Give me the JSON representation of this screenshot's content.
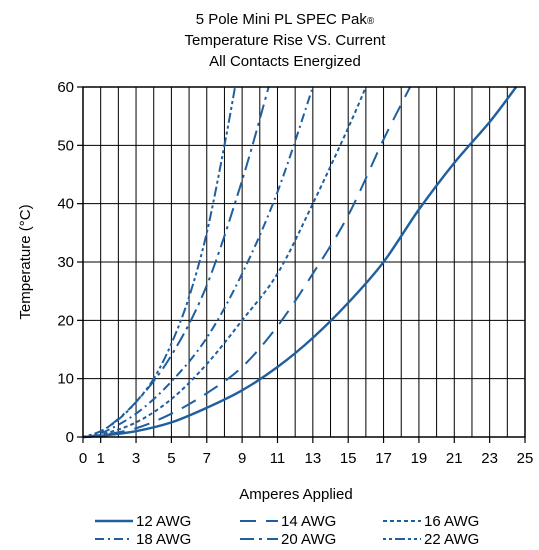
{
  "chart_data": {
    "type": "line",
    "title": [
      "5 Pole Mini PL SPEC Pak",
      "Temperature Rise VS. Current",
      "All Contacts Energized"
    ],
    "title_mark": "®",
    "xlabel": "Amperes Applied",
    "ylabel": "Temperature (°C)",
    "xlim": [
      0,
      25
    ],
    "ylim": [
      0,
      60
    ],
    "x_ticks": [
      0,
      1,
      3,
      5,
      7,
      9,
      11,
      13,
      15,
      17,
      19,
      21,
      23,
      25
    ],
    "y_ticks": [
      0,
      10,
      20,
      30,
      40,
      50,
      60
    ],
    "grid": true,
    "legend_position": "bottom",
    "line_color": "#1f5fa0",
    "series": [
      {
        "name": "12 AWG",
        "style": "solid",
        "x": [
          0,
          1,
          3,
          5,
          7,
          9,
          11,
          13,
          15,
          17,
          19,
          21,
          23,
          24.5
        ],
        "y": [
          0,
          0.2,
          1,
          2.5,
          5,
          8,
          12,
          17,
          23,
          30,
          39,
          47,
          54,
          60
        ]
      },
      {
        "name": "14 AWG",
        "style": "dash",
        "x": [
          0,
          1,
          3,
          5,
          7,
          9,
          11,
          13,
          15,
          17,
          18.5
        ],
        "y": [
          0,
          0.3,
          1.5,
          4,
          7.5,
          12,
          19,
          28,
          38,
          51,
          60
        ]
      },
      {
        "name": "16 AWG",
        "style": "dot",
        "x": [
          0,
          1,
          3,
          5,
          7,
          9,
          11,
          13,
          15,
          16
        ],
        "y": [
          0,
          0.4,
          2.5,
          6.5,
          12.5,
          20,
          28,
          40,
          53,
          60
        ]
      },
      {
        "name": "18 AWG",
        "style": "dashdot",
        "x": [
          0,
          1,
          3,
          5,
          7,
          9,
          11,
          13
        ],
        "y": [
          0,
          0.6,
          4,
          9.5,
          17,
          28,
          42,
          60
        ]
      },
      {
        "name": "20 AWG",
        "style": "longdashdot",
        "x": [
          0,
          1,
          3,
          5,
          7,
          9,
          10.5
        ],
        "y": [
          0,
          0.8,
          6,
          14,
          26,
          44,
          60
        ]
      },
      {
        "name": "22 AWG",
        "style": "dashdotdot",
        "x": [
          0,
          1,
          2,
          3,
          4,
          5,
          6,
          7,
          8,
          8.6
        ],
        "y": [
          0,
          1,
          3,
          6,
          10,
          16,
          24,
          35,
          50,
          60
        ]
      }
    ]
  }
}
